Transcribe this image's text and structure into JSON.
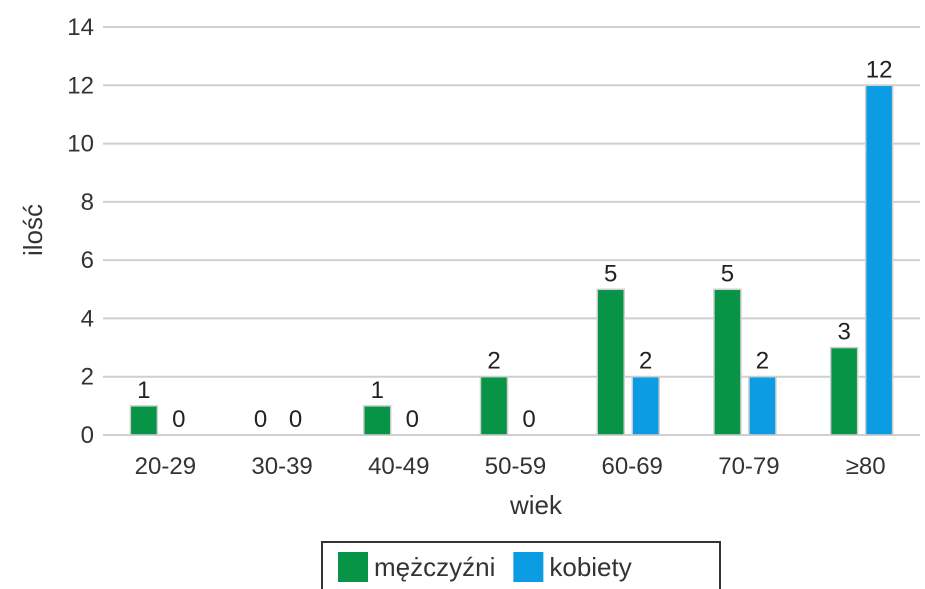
{
  "chart_data": {
    "type": "bar",
    "categories": [
      "20-29",
      "30-39",
      "40-49",
      "50-59",
      "60-69",
      "70-79",
      "≥80"
    ],
    "series": [
      {
        "name": "mężczyźni",
        "values": [
          1,
          0,
          1,
          2,
          5,
          5,
          3
        ],
        "color": "#079447"
      },
      {
        "name": "kobiety",
        "values": [
          0,
          0,
          0,
          0,
          2,
          2,
          12
        ],
        "color": "#0c9ce4"
      }
    ],
    "title": "",
    "xlabel": "wiek",
    "ylabel": "ilość",
    "ylim": [
      0,
      14
    ],
    "yticks": [
      0,
      2,
      4,
      6,
      8,
      10,
      12,
      14
    ],
    "grid": true,
    "legend_position": "bottom",
    "data_labels": true
  }
}
